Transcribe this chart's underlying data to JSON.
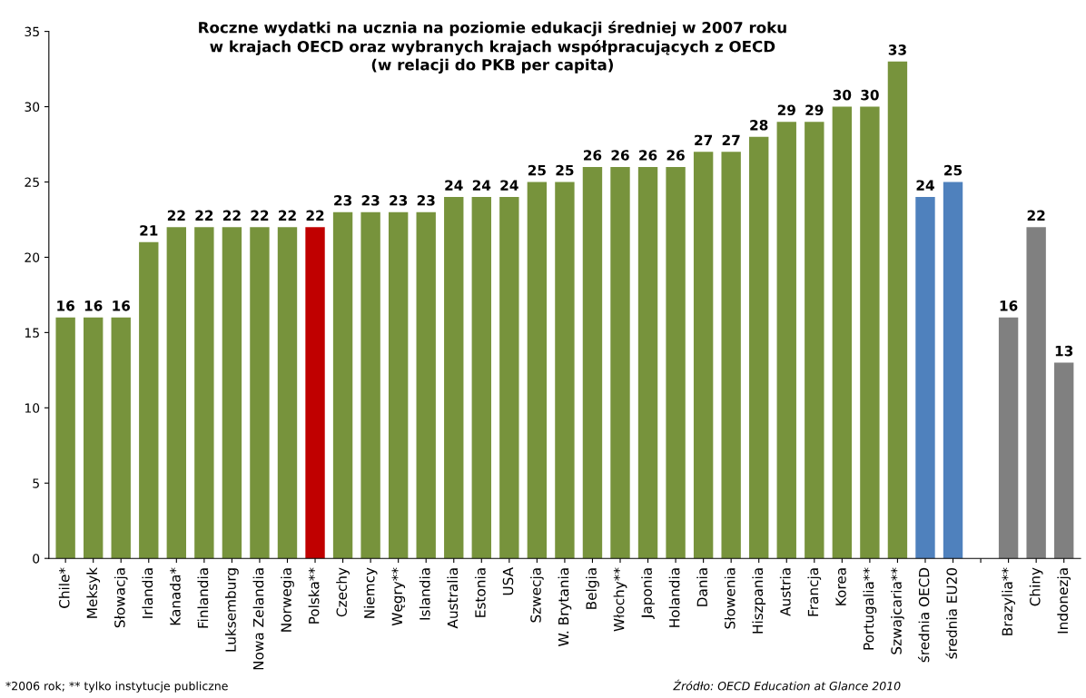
{
  "chart_data": {
    "type": "bar",
    "title": "Roczne wydatki na ucznia na poziomie edukacji średniej w 2007 roku\nw krajach OECD oraz wybranych krajach współpracujących z OECD\n(w relacji do PKB per capita)",
    "categories": [
      "Chile*",
      "Meksyk",
      "Słowacja",
      "Irlandia",
      "Kanada*",
      "Finlandia",
      "Luksemburg",
      "Nowa Zelandia",
      "Norwegia",
      "Polska**",
      "Czechy",
      "Niemcy",
      "Węgry**",
      "Islandia",
      "Australia",
      "Estonia",
      "USA",
      "Szwecja",
      "W. Brytania",
      "Belgia",
      "Włochy**",
      "Japonia",
      "Holandia",
      "Dania",
      "Słowenia",
      "Hiszpania",
      "Austria",
      "Francja",
      "Korea",
      "Portugalia**",
      "Szwajcaria**",
      "średnia OECD",
      "średnia EU20",
      null,
      "Brazylia**",
      "Chiny",
      "Indonezja"
    ],
    "values": [
      16,
      16,
      16,
      21,
      22,
      22,
      22,
      22,
      22,
      22,
      23,
      23,
      23,
      23,
      24,
      24,
      24,
      25,
      25,
      26,
      26,
      26,
      26,
      27,
      27,
      28,
      29,
      29,
      30,
      30,
      33,
      24,
      25,
      null,
      16,
      22,
      13
    ],
    "colors": [
      "#77933c",
      "#77933c",
      "#77933c",
      "#77933c",
      "#77933c",
      "#77933c",
      "#77933c",
      "#77933c",
      "#77933c",
      "#c00000",
      "#77933c",
      "#77933c",
      "#77933c",
      "#77933c",
      "#77933c",
      "#77933c",
      "#77933c",
      "#77933c",
      "#77933c",
      "#77933c",
      "#77933c",
      "#77933c",
      "#77933c",
      "#77933c",
      "#77933c",
      "#77933c",
      "#77933c",
      "#77933c",
      "#77933c",
      "#77933c",
      "#77933c",
      "#4f81bd",
      "#4f81bd",
      "#808080",
      "#808080",
      "#808080",
      "#808080"
    ],
    "ylim": [
      0,
      35
    ],
    "yticks": [
      0,
      5,
      10,
      15,
      20,
      25,
      30,
      35
    ],
    "data_labels": true,
    "grid": false,
    "annotations": [
      "*2006 rok; ** tylko instytucje publiczne",
      "Źródło: OECD Education at Glance 2010"
    ]
  }
}
